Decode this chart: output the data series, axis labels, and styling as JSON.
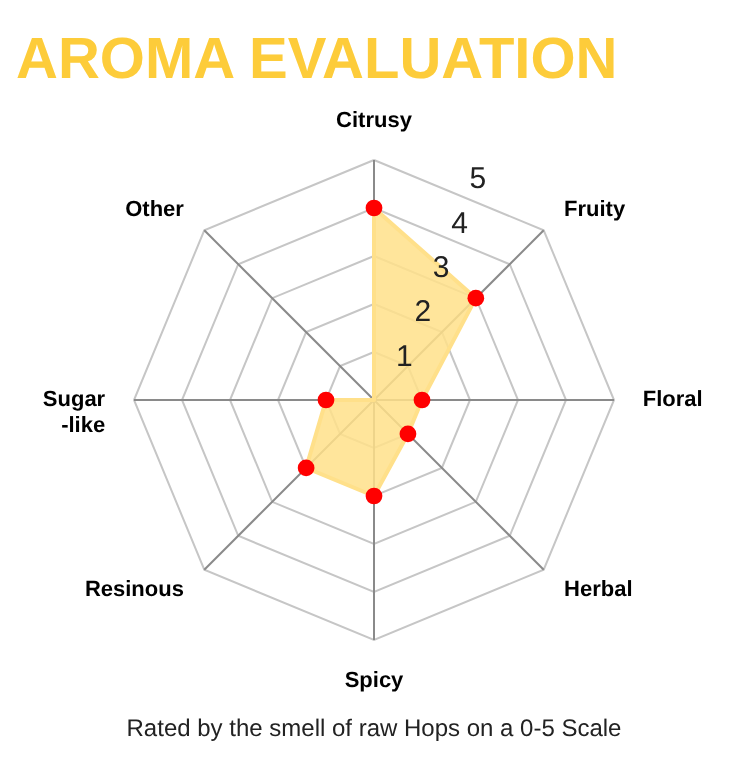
{
  "chart_data": {
    "type": "radar",
    "title": "AROMA EVALUATION",
    "annotations": [
      "Rated by the smell of raw Hops on a 0-5 Scale"
    ],
    "categories": [
      "Citrusy",
      "Fruity",
      "Floral",
      "Herbal",
      "Spicy",
      "Resinous",
      "Sugar\n-like",
      "Other"
    ],
    "series": [
      {
        "color": "#ffe08a",
        "colors": [
          "#ff0000",
          "#ff0000",
          "#ff0000",
          "#ff0000",
          "#ff0000",
          "#ff0000",
          "#ff0000",
          null
        ],
        "values": [
          4,
          3,
          1,
          1,
          2,
          2,
          1,
          0
        ]
      }
    ],
    "ylim": [
      0,
      5
    ],
    "yticks": [
      1,
      2,
      3,
      4,
      5
    ],
    "grid": true,
    "marker": "circle"
  }
}
